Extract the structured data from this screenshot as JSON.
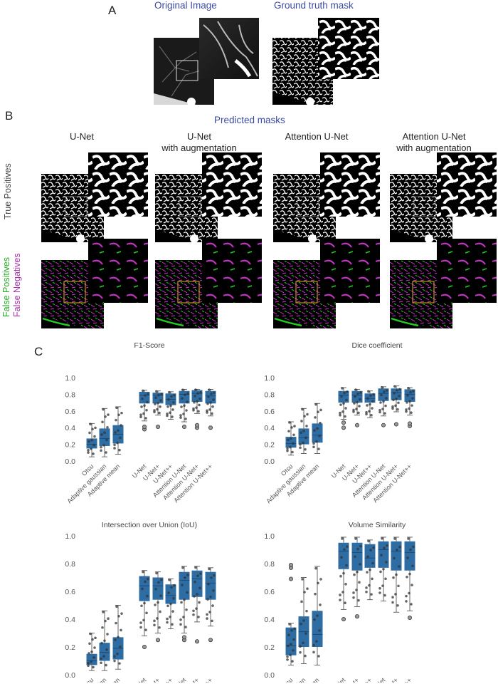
{
  "panel_a": {
    "letter": "A",
    "titles": [
      "Original Image",
      "Ground truth mask"
    ]
  },
  "panel_b": {
    "letter": "B",
    "heading": "Predicted masks",
    "columns": [
      {
        "line1": "U-Net",
        "line2": ""
      },
      {
        "line1": "U-Net",
        "line2": "with augmentation"
      },
      {
        "line1": "Attention U-Net",
        "line2": ""
      },
      {
        "line1": "Attention U-Net",
        "line2": "with augmentation"
      }
    ],
    "row_labels": {
      "true_positives": "True Positives",
      "false_positives": "False  Positives",
      "false_negatives": "False Negatives"
    },
    "colors": {
      "false_positive": "#22cc22",
      "false_negative": "#cc33cc",
      "roi_box": "#e8b020"
    }
  },
  "panel_c": {
    "letter": "C",
    "box_color": "#2e6da4"
  },
  "chart_data": [
    {
      "type": "box",
      "title": "F1-Score",
      "categories": [
        "Otsu",
        "Adaptive gaussian",
        "Adaptive mean",
        "U-Net",
        "U-Net+",
        "U-Net++",
        "Attention U-Net",
        "Attention U-Net+",
        "Attention U-Net++"
      ],
      "ylim": [
        0,
        1.0
      ],
      "yticks": [
        "0.0",
        "0.2",
        "0.4",
        "0.6",
        "0.8",
        "1.0"
      ],
      "boxes": [
        {
          "min": 0.05,
          "q1": 0.15,
          "median": 0.2,
          "q3": 0.27,
          "max": 0.45,
          "outliers": []
        },
        {
          "min": 0.05,
          "q1": 0.18,
          "median": 0.27,
          "q3": 0.39,
          "max": 0.63,
          "outliers": []
        },
        {
          "min": 0.08,
          "q1": 0.21,
          "median": 0.32,
          "q3": 0.43,
          "max": 0.65,
          "outliers": []
        },
        {
          "min": 0.48,
          "q1": 0.69,
          "median": 0.79,
          "q3": 0.83,
          "max": 0.85,
          "outliers": [
            0.38,
            0.41
          ]
        },
        {
          "min": 0.55,
          "q1": 0.69,
          "median": 0.79,
          "q3": 0.82,
          "max": 0.84,
          "outliers": [
            0.41
          ]
        },
        {
          "min": 0.5,
          "q1": 0.67,
          "median": 0.74,
          "q3": 0.81,
          "max": 0.83,
          "outliers": []
        },
        {
          "min": 0.47,
          "q1": 0.69,
          "median": 0.8,
          "q3": 0.84,
          "max": 0.86,
          "outliers": [
            0.41
          ]
        },
        {
          "min": 0.57,
          "q1": 0.71,
          "median": 0.81,
          "q3": 0.85,
          "max": 0.86,
          "outliers": [
            0.4,
            0.43
          ]
        },
        {
          "min": 0.54,
          "q1": 0.69,
          "median": 0.78,
          "q3": 0.84,
          "max": 0.86,
          "outliers": [
            0.4
          ]
        }
      ]
    },
    {
      "type": "box",
      "title": "Dice coefficient",
      "categories": [
        "Otsu",
        "Adaptive gaussian",
        "Adaptive mean",
        "U-Net",
        "U-Net+",
        "U-Net++",
        "Attention U-Net",
        "Attention U-Net+",
        "Attention U-Net++"
      ],
      "ylim": [
        0,
        1.0
      ],
      "yticks": [
        "0.0",
        "0.2",
        "0.4",
        "0.6",
        "0.8",
        "1.0"
      ],
      "boxes": [
        {
          "min": 0.07,
          "q1": 0.16,
          "median": 0.21,
          "q3": 0.29,
          "max": 0.47,
          "outliers": []
        },
        {
          "min": 0.09,
          "q1": 0.2,
          "median": 0.28,
          "q3": 0.39,
          "max": 0.63,
          "outliers": []
        },
        {
          "min": 0.09,
          "q1": 0.22,
          "median": 0.31,
          "q3": 0.45,
          "max": 0.69,
          "outliers": []
        },
        {
          "min": 0.5,
          "q1": 0.7,
          "median": 0.79,
          "q3": 0.84,
          "max": 0.88,
          "outliers": [
            0.4,
            0.46
          ]
        },
        {
          "min": 0.55,
          "q1": 0.7,
          "median": 0.79,
          "q3": 0.84,
          "max": 0.86,
          "outliers": [
            0.43
          ]
        },
        {
          "min": 0.52,
          "q1": 0.7,
          "median": 0.75,
          "q3": 0.81,
          "max": 0.84,
          "outliers": []
        },
        {
          "min": 0.54,
          "q1": 0.72,
          "median": 0.81,
          "q3": 0.87,
          "max": 0.89,
          "outliers": [
            0.43
          ]
        },
        {
          "min": 0.59,
          "q1": 0.73,
          "median": 0.82,
          "q3": 0.87,
          "max": 0.9,
          "outliers": [
            0.44
          ]
        },
        {
          "min": 0.55,
          "q1": 0.71,
          "median": 0.8,
          "q3": 0.86,
          "max": 0.88,
          "outliers": [
            0.42,
            0.45
          ]
        }
      ]
    },
    {
      "type": "box",
      "title": "Intersection over Union (IoU)",
      "categories": [
        "Otsu",
        "Adaptive gaussian",
        "Adaptive mean",
        "U-Net",
        "U-Net+",
        "U-Net++",
        "Attention U-Net",
        "Attention U-Net+",
        "Attention U-Net++"
      ],
      "ylim": [
        0,
        1.0
      ],
      "yticks": [
        "0.0",
        "0.2",
        "0.4",
        "0.6",
        "0.8",
        "1.0"
      ],
      "boxes": [
        {
          "min": 0.03,
          "q1": 0.07,
          "median": 0.1,
          "q3": 0.15,
          "max": 0.3,
          "outliers": []
        },
        {
          "min": 0.03,
          "q1": 0.1,
          "median": 0.16,
          "q3": 0.23,
          "max": 0.46,
          "outliers": []
        },
        {
          "min": 0.04,
          "q1": 0.11,
          "median": 0.19,
          "q3": 0.27,
          "max": 0.5,
          "outliers": []
        },
        {
          "min": 0.28,
          "q1": 0.53,
          "median": 0.64,
          "q3": 0.71,
          "max": 0.75,
          "outliers": [
            0.2
          ]
        },
        {
          "min": 0.3,
          "q1": 0.54,
          "median": 0.64,
          "q3": 0.7,
          "max": 0.74,
          "outliers": [
            0.25
          ]
        },
        {
          "min": 0.33,
          "q1": 0.51,
          "median": 0.57,
          "q3": 0.65,
          "max": 0.69,
          "outliers": []
        },
        {
          "min": 0.3,
          "q1": 0.54,
          "median": 0.68,
          "q3": 0.74,
          "max": 0.78,
          "outliers": [
            0.25,
            0.27
          ]
        },
        {
          "min": 0.38,
          "q1": 0.56,
          "median": 0.69,
          "q3": 0.75,
          "max": 0.78,
          "outliers": [
            0.24
          ]
        },
        {
          "min": 0.35,
          "q1": 0.54,
          "median": 0.66,
          "q3": 0.74,
          "max": 0.77,
          "outliers": [
            0.25
          ]
        }
      ]
    },
    {
      "type": "box",
      "title": "Volume Similarity",
      "categories": [
        "Otsu",
        "Adaptive gaussian",
        "Adaptive mean",
        "U-Net",
        "U-Net+",
        "U-Net++",
        "Attention U-Net",
        "Attention U-Net+",
        "Attention U-Net++"
      ],
      "ylim": [
        0,
        1.0
      ],
      "yticks": [
        "0.0",
        "0.2",
        "0.4",
        "0.6",
        "0.8",
        "1.0"
      ],
      "boxes": [
        {
          "min": 0.07,
          "q1": 0.14,
          "median": 0.21,
          "q3": 0.34,
          "max": 0.37,
          "outliers": [
            0.69,
            0.77,
            0.79
          ]
        },
        {
          "min": 0.08,
          "q1": 0.2,
          "median": 0.31,
          "q3": 0.42,
          "max": 0.7,
          "outliers": []
        },
        {
          "min": 0.07,
          "q1": 0.2,
          "median": 0.29,
          "q3": 0.46,
          "max": 0.78,
          "outliers": []
        },
        {
          "min": 0.47,
          "q1": 0.76,
          "median": 0.89,
          "q3": 0.95,
          "max": 0.99,
          "outliers": [
            0.4
          ]
        },
        {
          "min": 0.49,
          "q1": 0.75,
          "median": 0.88,
          "q3": 0.95,
          "max": 0.99,
          "outliers": [
            0.42
          ]
        },
        {
          "min": 0.54,
          "q1": 0.77,
          "median": 0.84,
          "q3": 0.94,
          "max": 0.97,
          "outliers": []
        },
        {
          "min": 0.53,
          "q1": 0.77,
          "median": 0.9,
          "q3": 0.96,
          "max": 0.99,
          "outliers": []
        },
        {
          "min": 0.45,
          "q1": 0.75,
          "median": 0.89,
          "q3": 0.96,
          "max": 0.99,
          "outliers": []
        },
        {
          "min": 0.46,
          "q1": 0.75,
          "median": 0.88,
          "q3": 0.96,
          "max": 0.99,
          "outliers": [
            0.41
          ]
        }
      ]
    }
  ]
}
